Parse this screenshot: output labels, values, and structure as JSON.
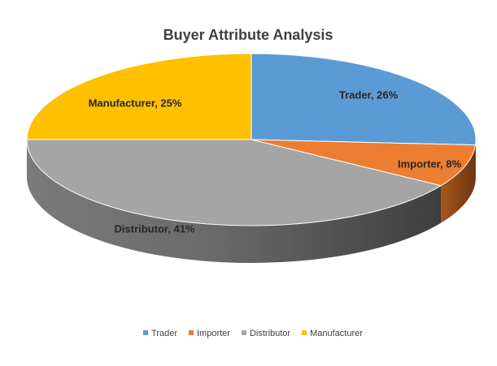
{
  "chart_data": {
    "type": "pie",
    "style": "3d",
    "title": "Buyer Attribute  Analysis",
    "categories": [
      "Trader",
      "Importer",
      "Distributor",
      "Manufacturer"
    ],
    "values": [
      26,
      8,
      41,
      25
    ],
    "unit": "%",
    "data_labels": [
      "Trader, 26%",
      "Importer, 8%",
      "Distributor, 41%",
      "Manufacturer, 25%"
    ],
    "colors": [
      "#5b9bd5",
      "#ed7d31",
      "#a5a5a5",
      "#ffc000"
    ],
    "legend": {
      "position": "bottom",
      "entries": [
        "Trader",
        "Importer",
        "Distributor",
        "Manufacturer"
      ]
    }
  }
}
